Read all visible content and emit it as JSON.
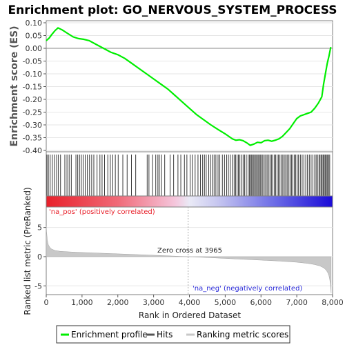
{
  "title": "Enrichment plot: GO_NERVOUS_SYSTEM_PROCESS",
  "chart_data": [
    {
      "type": "line",
      "ylabel": "Enrichment score (ES)",
      "ylim": [
        -0.4,
        0.1
      ],
      "xlim": [
        0,
        8000
      ],
      "yticks": [
        "0.10",
        "0.05",
        "0.00",
        "-0.05",
        "-0.10",
        "-0.15",
        "-0.20",
        "-0.25",
        "-0.30",
        "-0.35",
        "-0.40"
      ],
      "series": [
        {
          "name": "Enrichment profile",
          "color": "#00ee00",
          "x": [
            0,
            80,
            160,
            250,
            330,
            450,
            600,
            750,
            900,
            1050,
            1200,
            1400,
            1600,
            1800,
            2000,
            2200,
            2400,
            2600,
            2800,
            3000,
            3200,
            3400,
            3600,
            3800,
            4000,
            4200,
            4400,
            4600,
            4800,
            5000,
            5200,
            5300,
            5400,
            5500,
            5600,
            5700,
            5800,
            5900,
            6000,
            6100,
            6200,
            6300,
            6400,
            6500,
            6600,
            6700,
            6800,
            6900,
            7000,
            7100,
            7200,
            7300,
            7400,
            7500,
            7600,
            7700,
            7750,
            7800,
            7850,
            7900,
            7950
          ],
          "y": [
            0.03,
            0.04,
            0.055,
            0.07,
            0.08,
            0.072,
            0.058,
            0.045,
            0.038,
            0.035,
            0.03,
            0.015,
            0.0,
            -0.015,
            -0.025,
            -0.04,
            -0.06,
            -0.08,
            -0.1,
            -0.12,
            -0.14,
            -0.16,
            -0.185,
            -0.21,
            -0.235,
            -0.26,
            -0.28,
            -0.3,
            -0.318,
            -0.335,
            -0.355,
            -0.36,
            -0.358,
            -0.362,
            -0.37,
            -0.38,
            -0.375,
            -0.368,
            -0.37,
            -0.362,
            -0.36,
            -0.364,
            -0.36,
            -0.355,
            -0.345,
            -0.33,
            -0.315,
            -0.295,
            -0.275,
            -0.265,
            -0.26,
            -0.255,
            -0.25,
            -0.235,
            -0.215,
            -0.19,
            -0.14,
            -0.1,
            -0.06,
            -0.03,
            0.005
          ]
        }
      ]
    },
    {
      "type": "bar",
      "name": "Hits",
      "xlim": [
        0,
        8000
      ],
      "hit_positions": [
        20,
        60,
        110,
        170,
        230,
        290,
        340,
        400,
        520,
        580,
        640,
        700,
        830,
        880,
        930,
        980,
        1030,
        1090,
        1150,
        1210,
        1270,
        1330,
        1420,
        1500,
        1560,
        1630,
        1720,
        1790,
        1860,
        1930,
        2010,
        2140,
        2260,
        2380,
        2500,
        2820,
        2870,
        2970,
        3060,
        3120,
        3160,
        3220,
        3310,
        3460,
        3560,
        3680,
        3760,
        3860,
        3930,
        4020,
        4080,
        4160,
        4240,
        4310,
        4370,
        4420,
        4470,
        4540,
        4590,
        4640,
        4690,
        4740,
        4800,
        4850,
        4920,
        4980,
        5040,
        5090,
        5140,
        5200,
        5250,
        5290,
        5330,
        5370,
        5410,
        5450,
        5500,
        5540,
        5590,
        5640,
        5680,
        5710,
        5740,
        5770,
        5800,
        5830,
        5860,
        5890,
        5920,
        5950,
        5980,
        6010,
        6050,
        6090,
        6130,
        6170,
        6210,
        6250,
        6290,
        6330,
        6370,
        6410,
        6450,
        6490,
        6530,
        6570,
        6610,
        6650,
        6690,
        6730,
        6770,
        6810,
        6850,
        6890,
        6930,
        6970,
        7010,
        7050,
        7100,
        7150,
        7200,
        7250,
        7300,
        7350,
        7400,
        7450,
        7500,
        7540,
        7580,
        7620,
        7650,
        7680,
        7710,
        7740,
        7770,
        7800,
        7830,
        7860,
        7890,
        7920
      ]
    },
    {
      "type": "area",
      "ylabel": "Ranked list metric (PreRanked)",
      "xlabel": "Rank in Ordered Dataset",
      "ylim": [
        -6.5,
        8.5
      ],
      "xlim": [
        0,
        8000
      ],
      "yticks": [
        "5",
        "0",
        "-5"
      ],
      "xticks": [
        "0",
        "1,000",
        "2,000",
        "3,000",
        "4,000",
        "5,000",
        "6,000",
        "7,000",
        "8,000"
      ],
      "series": [
        {
          "name": "Ranking metric scores",
          "color": "#c8c8c8",
          "x": [
            0,
            10,
            30,
            60,
            100,
            150,
            250,
            400,
            700,
            1000,
            1500,
            2000,
            2500,
            3000,
            3500,
            3965,
            4500,
            5000,
            5500,
            6000,
            6500,
            7000,
            7300,
            7500,
            7650,
            7750,
            7820,
            7870,
            7900,
            7920,
            7940,
            7960
          ],
          "y": [
            5.2,
            4.3,
            2.8,
            2.0,
            1.6,
            1.3,
            1.05,
            0.9,
            0.8,
            0.72,
            0.6,
            0.48,
            0.36,
            0.24,
            0.12,
            0.0,
            -0.15,
            -0.3,
            -0.45,
            -0.6,
            -0.75,
            -0.95,
            -1.15,
            -1.35,
            -1.6,
            -1.9,
            -2.3,
            -2.8,
            -3.3,
            -3.9,
            -4.8,
            -6.2
          ]
        }
      ],
      "annotations": {
        "pos_label": "'na_pos' (positively correlated)",
        "neg_label": "'na_neg' (negatively correlated)",
        "zero_cross": "Zero cross at 3965"
      }
    }
  ],
  "legend": {
    "items": [
      {
        "label": "Enrichment profile",
        "color": "#00ee00"
      },
      {
        "label": "Hits",
        "color": "#555555"
      },
      {
        "label": "Ranking metric scores",
        "color": "#c8c8c8"
      }
    ]
  }
}
